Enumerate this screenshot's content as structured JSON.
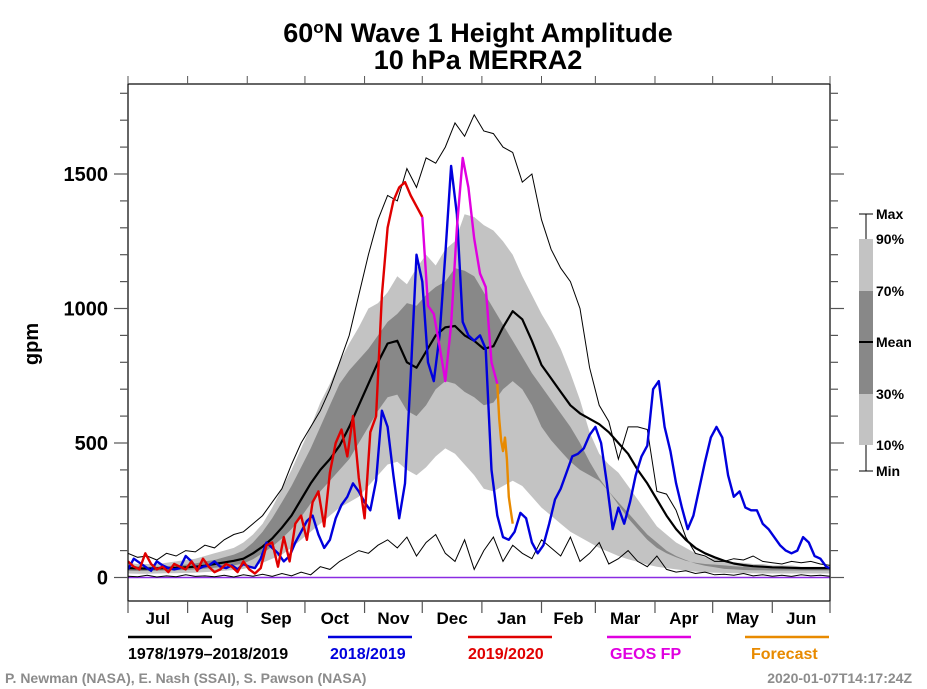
{
  "chart_data": {
    "type": "area",
    "title_line1_prefix": "60",
    "title_line1_degree": "o",
    "title_line1_suffix": "N Wave 1 Height Amplitude",
    "title_line2": "10 hPa   MERRA2",
    "ylabel": "gpm",
    "xlabel": "",
    "ylim": [
      -90,
      1820
    ],
    "yticks": [
      0,
      500,
      1000,
      1500
    ],
    "yminor_step": 100,
    "xlim_days": [
      0,
      365
    ],
    "months": [
      "Jul",
      "Aug",
      "Sep",
      "Oct",
      "Nov",
      "Dec",
      "Jan",
      "Feb",
      "Mar",
      "Apr",
      "May",
      "Jun"
    ],
    "month_start_days": [
      0,
      31,
      62,
      92,
      123,
      153,
      184,
      215,
      243,
      274,
      304,
      335
    ],
    "grid": false,
    "x_unit": "day since Jul 1",
    "climatology_days": [
      0,
      5,
      10,
      15,
      20,
      25,
      30,
      35,
      40,
      45,
      50,
      55,
      60,
      65,
      70,
      75,
      80,
      85,
      90,
      95,
      100,
      105,
      110,
      115,
      120,
      125,
      130,
      135,
      140,
      145,
      150,
      155,
      160,
      165,
      170,
      175,
      180,
      185,
      190,
      195,
      200,
      205,
      210,
      215,
      220,
      225,
      230,
      235,
      240,
      245,
      250,
      255,
      260,
      265,
      270,
      275,
      280,
      285,
      290,
      295,
      300,
      305,
      310,
      315,
      320,
      325,
      330,
      335,
      340,
      345,
      350,
      355,
      360,
      365
    ],
    "climatology": {
      "max": [
        90,
        75,
        80,
        65,
        90,
        80,
        100,
        95,
        120,
        110,
        140,
        160,
        170,
        200,
        230,
        280,
        330,
        420,
        500,
        560,
        620,
        700,
        800,
        900,
        1050,
        1200,
        1330,
        1420,
        1400,
        1520,
        1450,
        1560,
        1540,
        1600,
        1690,
        1640,
        1720,
        1660,
        1650,
        1600,
        1580,
        1470,
        1500,
        1330,
        1220,
        1150,
        1100,
        1000,
        780,
        640,
        580,
        440,
        560,
        560,
        550,
        320,
        310,
        250,
        150,
        90,
        80,
        60,
        60,
        70,
        65,
        80,
        60,
        55,
        50,
        60,
        55,
        60,
        50,
        45
      ],
      "p90": [
        55,
        50,
        50,
        50,
        55,
        60,
        65,
        70,
        80,
        90,
        100,
        110,
        130,
        160,
        200,
        260,
        330,
        400,
        480,
        560,
        650,
        720,
        800,
        870,
        930,
        1000,
        1020,
        1060,
        1120,
        1090,
        1150,
        1200,
        1160,
        1220,
        1250,
        1350,
        1340,
        1310,
        1290,
        1250,
        1200,
        1120,
        1050,
        980,
        920,
        850,
        760,
        660,
        540,
        460,
        420,
        390,
        340,
        290,
        240,
        190,
        160,
        130,
        110,
        90,
        75,
        70,
        60,
        55,
        55,
        50,
        50,
        45,
        45,
        45,
        40,
        40,
        40,
        40
      ],
      "p70": [
        45,
        42,
        40,
        40,
        42,
        45,
        48,
        52,
        60,
        65,
        75,
        85,
        100,
        130,
        170,
        220,
        280,
        340,
        410,
        480,
        560,
        640,
        720,
        770,
        810,
        850,
        900,
        950,
        980,
        1020,
        1010,
        1050,
        1080,
        1100,
        1150,
        1140,
        1120,
        1060,
        1000,
        940,
        880,
        820,
        760,
        710,
        660,
        610,
        560,
        500,
        430,
        370,
        320,
        270,
        220,
        180,
        140,
        110,
        90,
        75,
        62,
        55,
        50,
        48,
        45,
        42,
        40,
        38,
        37,
        36,
        35,
        35,
        34,
        34,
        34,
        34
      ],
      "mean": [
        35,
        34,
        33,
        34,
        35,
        36,
        38,
        40,
        44,
        50,
        56,
        62,
        70,
        90,
        115,
        145,
        185,
        230,
        290,
        350,
        400,
        440,
        490,
        560,
        640,
        720,
        800,
        870,
        880,
        800,
        780,
        840,
        900,
        930,
        935,
        900,
        880,
        850,
        860,
        930,
        990,
        960,
        880,
        790,
        740,
        690,
        640,
        610,
        590,
        570,
        540,
        500,
        460,
        400,
        350,
        290,
        230,
        180,
        140,
        110,
        90,
        75,
        62,
        52,
        46,
        42,
        40,
        38,
        37,
        36,
        35,
        35,
        35,
        35
      ],
      "p30": [
        25,
        24,
        24,
        25,
        26,
        27,
        28,
        30,
        33,
        36,
        40,
        45,
        52,
        68,
        90,
        115,
        145,
        180,
        225,
        275,
        320,
        360,
        400,
        440,
        500,
        560,
        620,
        670,
        680,
        620,
        600,
        640,
        700,
        730,
        720,
        690,
        670,
        640,
        650,
        700,
        730,
        700,
        640,
        560,
        510,
        470,
        430,
        400,
        380,
        360,
        320,
        280,
        240,
        200,
        160,
        130,
        100,
        80,
        65,
        52,
        44,
        38,
        32,
        30,
        28,
        27,
        27,
        26,
        26,
        26,
        26,
        26,
        26,
        26
      ],
      "p10": [
        15,
        14,
        14,
        15,
        16,
        16,
        17,
        18,
        20,
        22,
        25,
        28,
        32,
        40,
        55,
        70,
        85,
        110,
        140,
        170,
        200,
        230,
        260,
        280,
        300,
        340,
        380,
        420,
        430,
        400,
        380,
        410,
        450,
        480,
        460,
        420,
        380,
        330,
        320,
        340,
        360,
        340,
        300,
        260,
        230,
        200,
        170,
        150,
        130,
        110,
        95,
        80,
        68,
        58,
        48,
        40,
        35,
        30,
        26,
        22,
        20,
        18,
        17,
        16,
        16,
        16,
        15,
        15,
        15,
        15,
        15,
        15,
        15,
        15
      ],
      "min": [
        5,
        3,
        8,
        2,
        6,
        3,
        10,
        4,
        6,
        3,
        8,
        2,
        10,
        5,
        12,
        4,
        15,
        6,
        20,
        10,
        40,
        30,
        60,
        80,
        100,
        90,
        120,
        140,
        110,
        150,
        80,
        130,
        160,
        90,
        60,
        140,
        30,
        100,
        150,
        60,
        120,
        90,
        70,
        140,
        110,
        80,
        150,
        60,
        90,
        130,
        50,
        70,
        100,
        60,
        40,
        80,
        30,
        20,
        25,
        15,
        20,
        10,
        12,
        8,
        15,
        6,
        10,
        5,
        8,
        4,
        10,
        6,
        8,
        5
      ]
    },
    "series": [
      {
        "name": "1978/1979–2018/2019",
        "role": "climatology",
        "color": "#000000"
      },
      {
        "name": "2018/2019",
        "color": "#0000dd",
        "days": [
          0,
          3,
          6,
          9,
          12,
          15,
          18,
          21,
          24,
          27,
          30,
          33,
          36,
          39,
          42,
          45,
          48,
          51,
          54,
          57,
          60,
          63,
          66,
          69,
          72,
          75,
          78,
          81,
          84,
          87,
          90,
          93,
          96,
          99,
          102,
          105,
          108,
          111,
          114,
          117,
          120,
          123,
          126,
          129,
          132,
          135,
          138,
          141,
          144,
          147,
          150,
          153,
          156,
          159,
          162,
          165,
          168,
          171,
          174,
          177,
          180,
          183,
          186,
          189,
          192,
          195,
          198,
          201,
          204,
          207,
          210,
          213,
          216,
          219,
          222,
          225,
          228,
          231,
          234,
          237,
          240,
          243,
          246,
          249,
          252,
          255,
          258,
          261,
          264,
          267,
          270,
          273,
          276,
          279,
          282,
          285,
          288,
          291,
          294,
          297,
          300,
          303,
          306,
          309,
          312,
          315,
          318,
          321,
          324,
          327,
          330,
          333,
          336,
          339,
          342,
          345,
          348,
          351,
          354,
          357,
          360,
          363,
          365
        ],
        "values": [
          30,
          70,
          55,
          40,
          25,
          60,
          45,
          35,
          30,
          35,
          80,
          60,
          30,
          40,
          45,
          60,
          40,
          35,
          45,
          30,
          50,
          40,
          35,
          70,
          130,
          110,
          90,
          60,
          80,
          130,
          170,
          210,
          230,
          160,
          110,
          140,
          220,
          270,
          300,
          350,
          320,
          280,
          250,
          360,
          620,
          560,
          380,
          220,
          350,
          750,
          1200,
          1100,
          800,
          730,
          900,
          1200,
          1530,
          1350,
          950,
          900,
          880,
          900,
          850,
          400,
          230,
          150,
          140,
          170,
          240,
          220,
          130,
          90,
          120,
          200,
          290,
          330,
          390,
          450,
          460,
          480,
          530,
          560,
          500,
          350,
          180,
          260,
          200,
          280,
          380,
          450,
          490,
          700,
          730,
          560,
          470,
          350,
          260,
          180,
          230,
          330,
          430,
          520,
          560,
          520,
          380,
          300,
          320,
          260,
          250,
          250,
          200,
          180,
          150,
          120,
          100,
          90,
          100,
          150,
          130,
          80,
          70,
          40,
          35,
          40,
          80,
          70,
          40
        ]
      },
      {
        "name": "2019/2020",
        "color": "#e00000",
        "days": [
          0,
          3,
          6,
          9,
          12,
          15,
          18,
          21,
          24,
          27,
          30,
          33,
          36,
          39,
          42,
          45,
          48,
          51,
          54,
          57,
          60,
          63,
          66,
          69,
          72,
          75,
          78,
          81,
          84,
          87,
          90,
          93,
          96,
          99,
          102,
          105,
          108,
          111,
          114,
          117,
          120,
          123,
          126,
          129,
          132,
          135,
          138,
          141,
          144,
          147,
          150,
          153
        ],
        "values": [
          60,
          40,
          30,
          90,
          50,
          30,
          40,
          20,
          50,
          40,
          30,
          60,
          25,
          70,
          40,
          20,
          30,
          50,
          40,
          20,
          60,
          30,
          15,
          35,
          120,
          130,
          40,
          150,
          60,
          200,
          230,
          140,
          280,
          320,
          190,
          390,
          500,
          550,
          450,
          600,
          370,
          220,
          540,
          600,
          1050,
          1300,
          1400,
          1450,
          1470,
          1420,
          1380,
          1340
        ]
      },
      {
        "name": "GEOS FP",
        "color": "#e000e0",
        "days": [
          153,
          156,
          159,
          162,
          165,
          168,
          171,
          174,
          177,
          180,
          183,
          186,
          189,
          192
        ],
        "values": [
          1340,
          1010,
          980,
          860,
          730,
          940,
          1300,
          1560,
          1450,
          1260,
          1130,
          1080,
          800,
          720
        ]
      },
      {
        "name": "Forecast",
        "color": "#e88a00",
        "days": [
          192,
          193,
          194,
          195,
          196,
          197,
          198,
          199,
          200
        ],
        "values": [
          720,
          590,
          510,
          470,
          520,
          440,
          300,
          250,
          200
        ]
      }
    ],
    "zero_line_color": "#8a2be2",
    "band_colors": {
      "outer": "#c3c3c3",
      "inner": "#888888"
    },
    "key_labels": [
      "Max",
      "90%",
      "70%",
      "Mean",
      "30%",
      "10%",
      "Min"
    ],
    "legend_placement": "bottom"
  },
  "legend": [
    {
      "label": "1978/1979–2018/2019",
      "color": "#000000"
    },
    {
      "label": "2018/2019",
      "color": "#0000dd"
    },
    {
      "label": "2019/2020",
      "color": "#e00000"
    },
    {
      "label": "GEOS FP",
      "color": "#e000e0"
    },
    {
      "label": "Forecast",
      "color": "#e88a00"
    }
  ],
  "footer": {
    "credits": "P. Newman (NASA), E. Nash (SSAI), S. Pawson (NASA)",
    "timestamp": "2020-01-07T14:17:24Z"
  }
}
